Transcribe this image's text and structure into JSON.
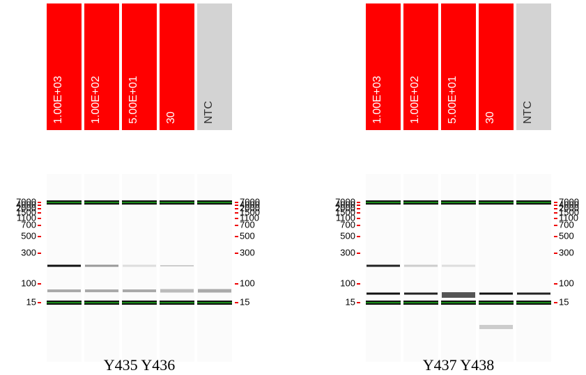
{
  "panels": [
    {
      "lanes": [
        "1.00E+03",
        "1.00E+02",
        "5.00E+01",
        "30",
        "NTC"
      ],
      "caption": "Y435 Y436"
    },
    {
      "lanes": [
        "1.00E+03",
        "1.00E+02",
        "5.00E+01",
        "30",
        "NTC"
      ],
      "caption": "Y437 Y438"
    }
  ],
  "ladder": [
    "7000",
    "4000",
    "2000",
    "1500",
    "1100",
    "700",
    "500",
    "300",
    "100",
    "15"
  ]
}
